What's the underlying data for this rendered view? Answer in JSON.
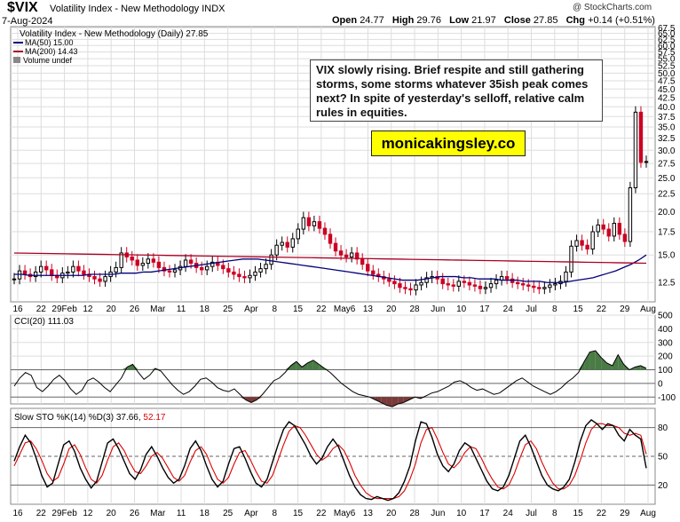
{
  "header": {
    "symbol": "$VIX",
    "name": "Volatility Index - New Methodology  INDX",
    "date": "7-Aug-2024",
    "watermark": "@ StockCharts.com",
    "open_label": "Open",
    "open": "24.77",
    "high_label": "High",
    "high": "29.76",
    "low_label": "Low",
    "low": "21.97",
    "close_label": "Close",
    "close": "27.85",
    "chg_label": "Chg",
    "chg": "+0.14 (+0.51%)"
  },
  "legend": {
    "main": "Volatility Index - New Methodology (Daily) 27.85",
    "ma50": "MA(50) 15.00",
    "ma200": "MA(200) 14.43",
    "volume": "Volume undef"
  },
  "annotation": {
    "text": "VIX slowly rising. Brief respite and still gathering storms, some storms whatever 35ish peak comes next? In spite of yesterday's selloff, relative calm rules in equities.",
    "brand": "monicakingsley.co"
  },
  "colors": {
    "up": "#000000",
    "down": "#cc0022",
    "ma50": "#00007a",
    "ma200": "#aa0022",
    "cci_fill": "#4a7a45",
    "cci_neg_fill": "#7a3a3a",
    "sto_d": "#dd0000",
    "grid": "#dddddd"
  },
  "chart_data": [
    {
      "type": "candlestick",
      "title": "Volatility Index - New Methodology (Daily) 27.85",
      "scale": "log",
      "ylim": [
        11,
        68
      ],
      "y_ticks": [
        "67.5",
        "65.0",
        "62.5",
        "60.0",
        "57.5",
        "55.0",
        "52.5",
        "50.0",
        "47.5",
        "45.0",
        "42.5",
        "40.0",
        "37.5",
        "35.0",
        "32.5",
        "30.0",
        "27.5",
        "25.0",
        "22.5",
        "20.0",
        "17.5",
        "15.0",
        "12.5"
      ],
      "x_ticks": [
        "16",
        "22",
        "29Feb",
        "12",
        "20",
        "26",
        "Mar",
        "11",
        "18",
        "25",
        "Apr",
        "8",
        "15",
        "22",
        "May6",
        "13",
        "20",
        "28",
        "Jun",
        "10",
        "17",
        "24",
        "Jul",
        "8",
        "15",
        "22",
        "29",
        "Aug"
      ],
      "close": [
        12.8,
        13.5,
        13.2,
        13.0,
        13.4,
        13.9,
        13.6,
        13.1,
        12.9,
        13.3,
        13.4,
        13.9,
        13.5,
        13.2,
        13.0,
        12.8,
        12.6,
        13.0,
        13.4,
        13.8,
        15.2,
        14.8,
        14.5,
        14.0,
        14.2,
        14.6,
        14.3,
        13.8,
        13.5,
        13.4,
        13.6,
        13.9,
        14.5,
        14.2,
        13.8,
        13.6,
        13.9,
        14.3,
        14.0,
        13.7,
        13.4,
        13.2,
        13.0,
        12.9,
        13.1,
        13.4,
        13.7,
        14.1,
        15.0,
        16.0,
        16.3,
        15.8,
        16.7,
        17.8,
        19.2,
        18.2,
        18.7,
        17.9,
        17.2,
        16.2,
        15.4,
        15.0,
        14.8,
        15.2,
        14.6,
        14.1,
        13.5,
        13.2,
        13.0,
        12.8,
        12.6,
        12.4,
        12.1,
        12.0,
        11.9,
        12.3,
        12.5,
        12.9,
        13.0,
        12.8,
        12.4,
        12.3,
        12.2,
        12.6,
        12.5,
        12.3,
        12.2,
        12.0,
        12.1,
        12.4,
        12.7,
        13.0,
        12.8,
        12.5,
        12.4,
        12.3,
        12.2,
        12.1,
        12.0,
        12.1,
        12.3,
        12.4,
        12.6,
        13.4,
        15.9,
        16.5,
        16.0,
        15.6,
        17.5,
        18.3,
        17.8,
        17.0,
        18.5,
        17.2,
        16.4,
        23.4,
        38.6,
        27.7,
        27.85
      ],
      "ma50": [
        13.2,
        13.2,
        13.1,
        13.1,
        13.1,
        13.1,
        13.1,
        13.1,
        13.1,
        13.1,
        13.2,
        13.2,
        13.2,
        13.2,
        13.3,
        13.3,
        13.3,
        13.4,
        13.4,
        13.5,
        13.6,
        13.7,
        13.8,
        13.9,
        14.0,
        14.1,
        14.2,
        14.3,
        14.4,
        14.5,
        14.6,
        14.6,
        14.6,
        14.5,
        14.4,
        14.3,
        14.2,
        14.1,
        14.0,
        13.9,
        13.8,
        13.7,
        13.6,
        13.5,
        13.4,
        13.3,
        13.2,
        13.1,
        13.0,
        12.9,
        12.8,
        12.7,
        12.7,
        12.7,
        12.8,
        12.9,
        13.0,
        13.0,
        13.0,
        12.9,
        12.9,
        12.8,
        12.8,
        12.8,
        12.7,
        12.7,
        12.7,
        12.6,
        12.6,
        12.6,
        12.5,
        12.5,
        12.5,
        12.6,
        12.7,
        12.8,
        12.9,
        13.1,
        13.3,
        13.5,
        13.8,
        14.1,
        14.5,
        15.0
      ]
    },
    {
      "type": "line",
      "title": "CCI(20) 111.03",
      "ylim": [
        -150,
        500
      ],
      "y_ticks": [
        500,
        400,
        300,
        200,
        100,
        0,
        -100
      ],
      "series": [
        {
          "name": "CCI(20)",
          "values": [
            -20,
            40,
            80,
            60,
            -30,
            -60,
            -20,
            30,
            60,
            20,
            -40,
            -80,
            -50,
            20,
            40,
            10,
            -30,
            -60,
            -10,
            40,
            120,
            140,
            80,
            30,
            60,
            110,
            90,
            40,
            -10,
            -50,
            -80,
            -60,
            -20,
            30,
            40,
            10,
            -30,
            -50,
            -60,
            -40,
            -80,
            -120,
            -140,
            -120,
            -80,
            -30,
            20,
            40,
            80,
            130,
            160,
            120,
            150,
            170,
            140,
            110,
            80,
            40,
            0,
            -30,
            -60,
            -80,
            -90,
            -100,
            -120,
            -140,
            -160,
            -170,
            -150,
            -140,
            -120,
            -100,
            -110,
            -90,
            -70,
            -60,
            -40,
            -20,
            10,
            20,
            0,
            -30,
            -50,
            -40,
            -60,
            -80,
            -70,
            -40,
            -10,
            20,
            40,
            10,
            -20,
            -40,
            -60,
            -80,
            -60,
            -30,
            10,
            40,
            80,
            160,
            230,
            240,
            190,
            150,
            130,
            210,
            140,
            100,
            120,
            130,
            111.03
          ]
        }
      ]
    },
    {
      "type": "line",
      "title": "Slow STO %K(14) %D(3) 37.66, 52.17",
      "ylim": [
        0,
        100
      ],
      "y_ticks": [
        80,
        50,
        20
      ],
      "series": [
        {
          "name": "%K(14)",
          "values": [
            45,
            60,
            72,
            64,
            48,
            30,
            18,
            22,
            42,
            62,
            66,
            55,
            38,
            26,
            17,
            24,
            44,
            64,
            68,
            58,
            45,
            32,
            26,
            36,
            52,
            60,
            50,
            38,
            28,
            22,
            26,
            40,
            58,
            66,
            56,
            40,
            26,
            18,
            24,
            42,
            58,
            60,
            48,
            34,
            22,
            18,
            26,
            44,
            62,
            78,
            86,
            82,
            72,
            62,
            50,
            42,
            48,
            60,
            68,
            60,
            45,
            30,
            18,
            10,
            6,
            5,
            8,
            6,
            4,
            6,
            12,
            24,
            40,
            66,
            86,
            84,
            70,
            52,
            40,
            34,
            42,
            56,
            64,
            60,
            48,
            36,
            24,
            16,
            14,
            18,
            30,
            48,
            66,
            72,
            60,
            45,
            30,
            20,
            16,
            14,
            18,
            26,
            44,
            66,
            82,
            88,
            84,
            78,
            84,
            82,
            72,
            66,
            78,
            72,
            68,
            37.66
          ]
        },
        {
          "name": "%D(3)",
          "values": [
            40,
            52,
            64,
            66,
            58,
            46,
            32,
            24,
            28,
            42,
            58,
            62,
            52,
            38,
            26,
            22,
            30,
            46,
            60,
            64,
            56,
            44,
            34,
            32,
            40,
            50,
            54,
            48,
            38,
            28,
            24,
            30,
            44,
            56,
            60,
            52,
            38,
            26,
            22,
            28,
            42,
            54,
            56,
            46,
            34,
            24,
            22,
            30,
            46,
            62,
            76,
            82,
            80,
            72,
            62,
            52,
            46,
            50,
            58,
            62,
            56,
            44,
            30,
            20,
            12,
            8,
            6,
            6,
            6,
            6,
            8,
            14,
            26,
            42,
            64,
            78,
            80,
            68,
            54,
            42,
            38,
            44,
            54,
            60,
            58,
            48,
            36,
            26,
            18,
            16,
            20,
            32,
            48,
            62,
            66,
            58,
            44,
            32,
            22,
            16,
            16,
            20,
            30,
            46,
            64,
            78,
            84,
            84,
            82,
            82,
            80,
            74,
            72,
            74,
            72,
            52.17
          ]
        }
      ]
    }
  ]
}
